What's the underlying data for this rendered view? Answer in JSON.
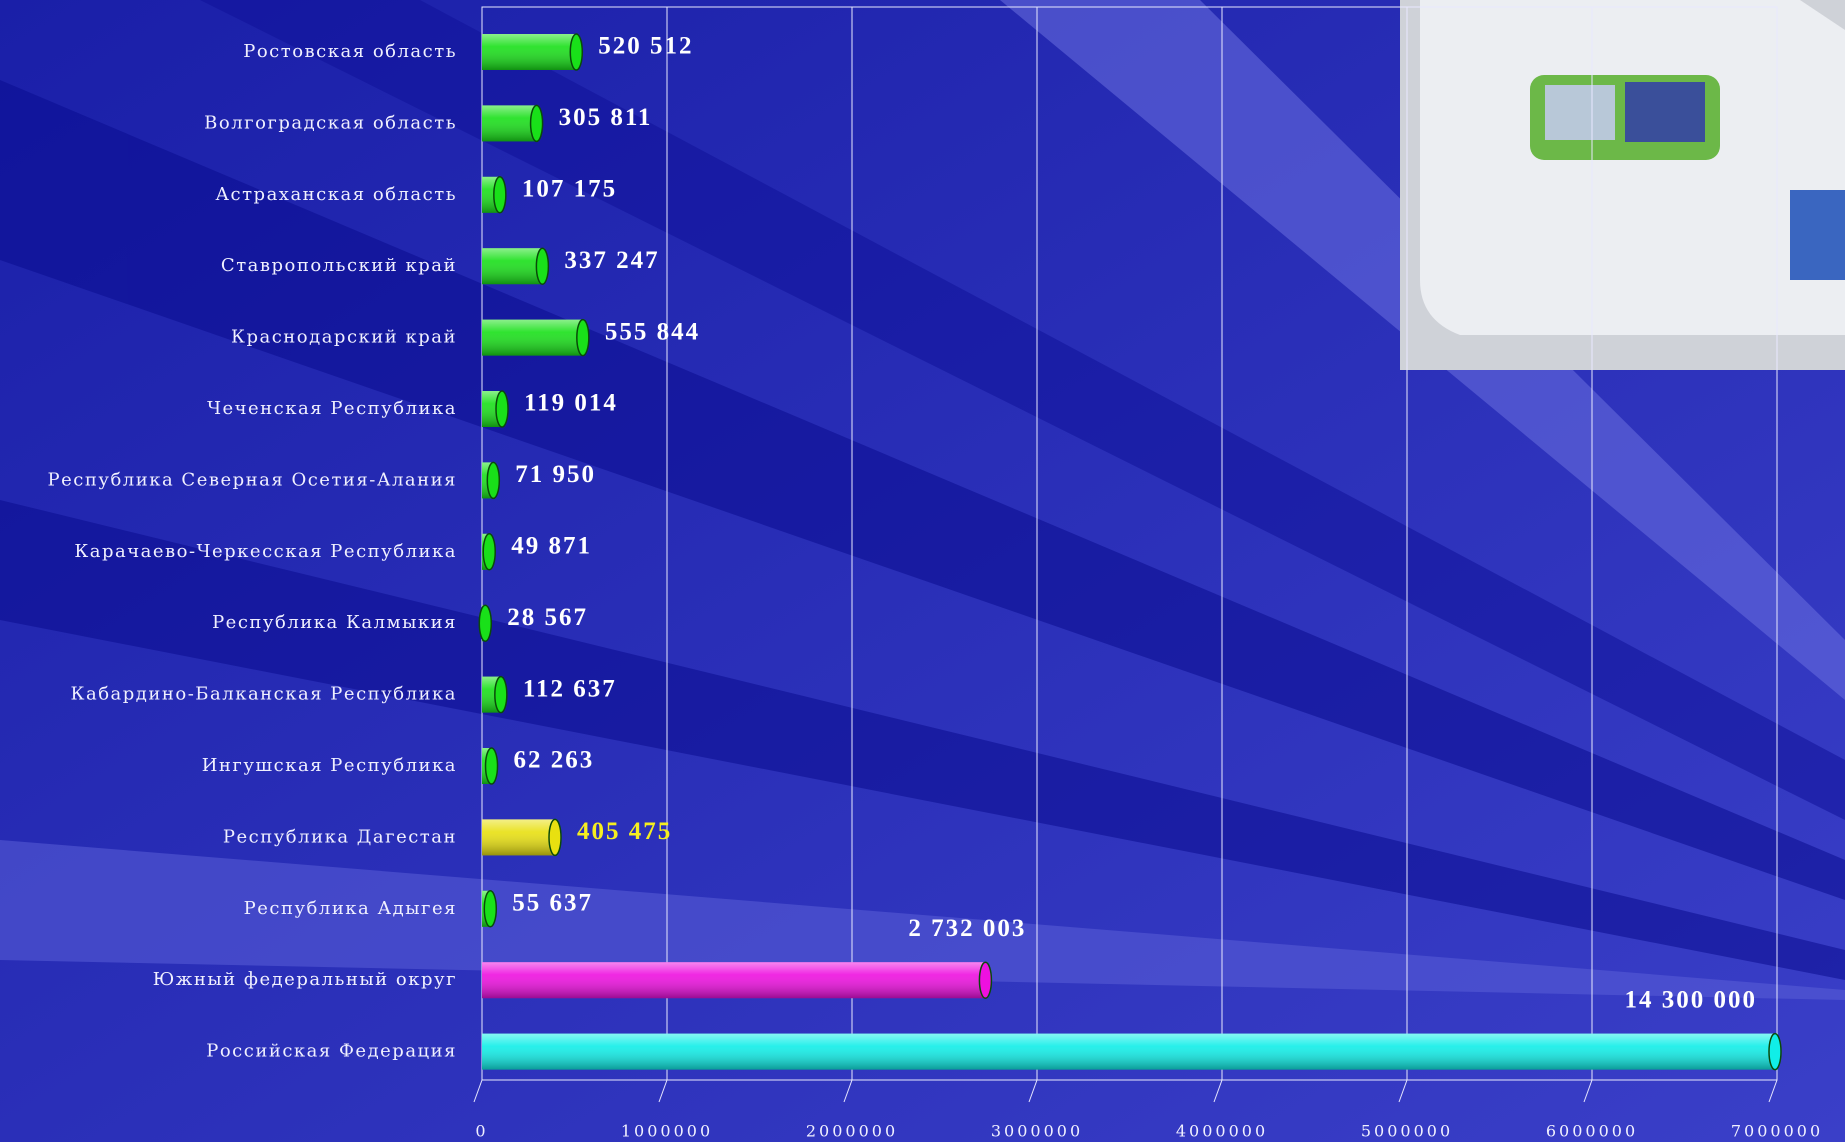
{
  "chart_data": {
    "type": "hbar",
    "categories": [
      "Ростовская область",
      "Волгоградская область",
      "Астраханская область",
      "Ставропольский край",
      "Краснодарский край",
      "Чеченская Республика",
      "Республика Северная Осетия-Алания",
      "Карачаево-Черкесская Республика",
      "Республика Калмыкия",
      "Кабардино-Балканская Республика",
      "Ингушская Республика",
      "Республика Дагестан",
      "Республика Адыгея",
      "Южный федеральный округ",
      "Российская Федерация"
    ],
    "values": [
      520512,
      305811,
      107175,
      337247,
      555844,
      119014,
      71950,
      49871,
      28567,
      112637,
      62263,
      405475,
      55637,
      2732003,
      14300000
    ],
    "value_labels": [
      "520 512",
      "305 811",
      "107 175",
      "337 247",
      "555 844",
      "119 014",
      "71 950",
      "49 871",
      "28 567",
      "112 637",
      "62 263",
      "405 475",
      "55 637",
      "2 732 003",
      "14 300 000"
    ],
    "colors": [
      "#19e019",
      "#19e019",
      "#19e019",
      "#19e019",
      "#19e019",
      "#19e019",
      "#19e019",
      "#19e019",
      "#19e019",
      "#19e019",
      "#19e019",
      "#e8e010",
      "#19e019",
      "#ee10e0",
      "#10eee8"
    ],
    "value_label_colors": [
      "#ffffff",
      "#ffffff",
      "#ffffff",
      "#ffffff",
      "#ffffff",
      "#ffffff",
      "#ffffff",
      "#ffffff",
      "#ffffff",
      "#ffffff",
      "#ffffff",
      "#f5ee20",
      "#ffffff",
      "#ffffff",
      "#ffffff"
    ],
    "xlim": [
      0,
      7000000
    ],
    "xticks": [
      0,
      1000000,
      2000000,
      3000000,
      4000000,
      5000000,
      6000000,
      7000000
    ],
    "grid": true
  }
}
